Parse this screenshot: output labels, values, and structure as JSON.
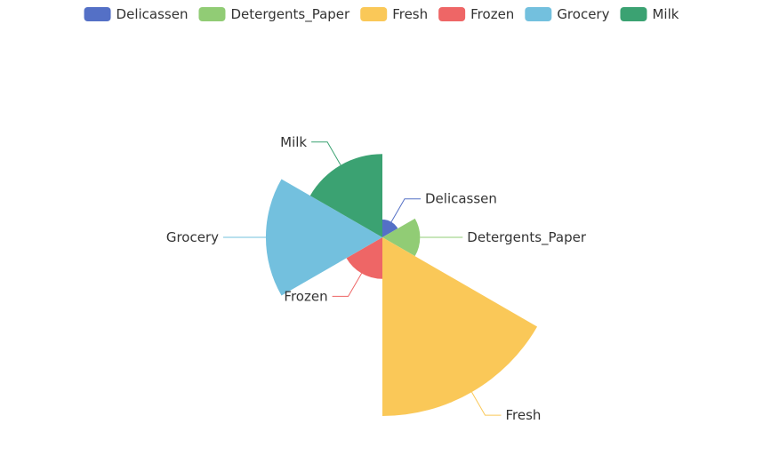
{
  "chart_data": {
    "type": "pie",
    "subtype": "rose",
    "legend_position": "top-center",
    "categories": [
      "Delicassen",
      "Detergents_Paper",
      "Fresh",
      "Frozen",
      "Grocery",
      "Milk"
    ],
    "values": [
      1524,
      2816,
      12000,
      3071,
      7951,
      5796
    ],
    "colors": [
      "#5470c6",
      "#91cc75",
      "#fac858",
      "#ee6666",
      "#73c0de",
      "#3ba272"
    ]
  }
}
